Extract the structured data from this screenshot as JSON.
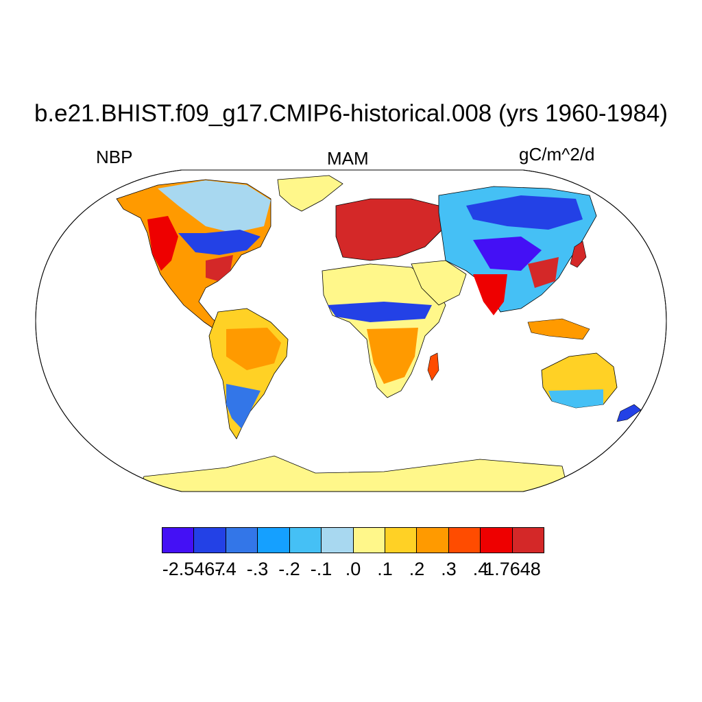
{
  "title": "b.e21.BHIST.f09_g17.CMIP6-historical.008 (yrs 1960-1984)",
  "left_label": "NBP",
  "center_label": "MAM",
  "right_label": "gC/m^2/d",
  "colorbar": {
    "colors": [
      "#4410f5",
      "#2341e6",
      "#3376e8",
      "#15a0ff",
      "#45c0f5",
      "#a8d8f0",
      "#fff78a",
      "#ffd125",
      "#ff9a00",
      "#ff4c00",
      "#ee0000",
      "#d42828"
    ],
    "labels": [
      "-2.5467",
      "-.4",
      "-.3",
      "-.2",
      "-.1",
      ".0",
      ".1",
      ".2",
      ".3",
      ".4",
      "1.7648"
    ]
  }
}
